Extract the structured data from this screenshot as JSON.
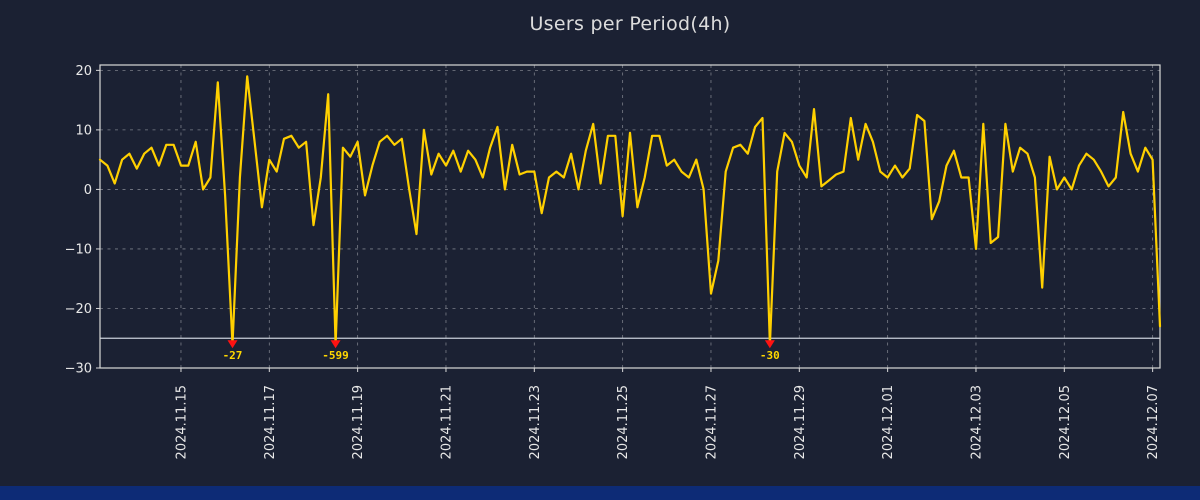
{
  "page": {
    "background": "#1b2133",
    "bottom_bar_color": "#0d2b76"
  },
  "chart_data": {
    "type": "line",
    "title": "Users per Period(4h)",
    "point_interval": "4h",
    "x_axis": {
      "ticks": [
        {
          "index": 11,
          "label": "2024.11.15"
        },
        {
          "index": 23,
          "label": "2024.11.17"
        },
        {
          "index": 35,
          "label": "2024.11.19"
        },
        {
          "index": 47,
          "label": "2024.11.21"
        },
        {
          "index": 59,
          "label": "2024.11.23"
        },
        {
          "index": 71,
          "label": "2024.11.25"
        },
        {
          "index": 83,
          "label": "2024.11.27"
        },
        {
          "index": 95,
          "label": "2024.11.29"
        },
        {
          "index": 107,
          "label": "2024.12.01"
        },
        {
          "index": 119,
          "label": "2024.12.03"
        },
        {
          "index": 131,
          "label": "2024.12.05"
        },
        {
          "index": 143,
          "label": "2024.12.07"
        }
      ]
    },
    "y_axis": {
      "range": [
        -30,
        20.9
      ],
      "ticks": [
        {
          "value": 20,
          "label": "20"
        },
        {
          "value": 10,
          "label": "10"
        },
        {
          "value": 0,
          "label": "0"
        },
        {
          "value": -10,
          "label": "−10"
        },
        {
          "value": -20,
          "label": "−20"
        },
        {
          "value": -30,
          "label": "−30"
        }
      ]
    },
    "grid": true,
    "legend": null,
    "values": [
      5,
      4,
      1,
      5,
      6,
      3.5,
      6,
      7,
      4,
      7.5,
      7.5,
      4,
      4,
      8,
      0,
      2,
      18,
      -1,
      -27,
      2,
      19,
      8,
      -3,
      5,
      3,
      8.5,
      9,
      7,
      8,
      -6,
      2,
      16,
      -599,
      7,
      5.5,
      8,
      -1,
      4,
      8,
      9,
      7.5,
      8.5,
      0,
      -7.5,
      10,
      2.5,
      6,
      4,
      6.5,
      3,
      6.5,
      5,
      2,
      7,
      10.5,
      0,
      7.5,
      2.5,
      3,
      3,
      -4,
      2,
      3,
      2,
      6,
      0,
      6.5,
      11,
      1,
      9,
      9,
      -4.5,
      9.5,
      -3,
      2,
      9,
      9,
      4,
      5,
      3,
      2,
      5,
      0,
      -17.5,
      -12,
      3,
      7,
      7.5,
      6,
      10.5,
      12,
      -30,
      3,
      9.5,
      8,
      4,
      2,
      13.5,
      0.5,
      1.5,
      2.5,
      3,
      12,
      5,
      11,
      8,
      3,
      2,
      4,
      2,
      3.5,
      12.5,
      11.5,
      -5,
      -2,
      4,
      6.5,
      2,
      2,
      -10,
      11,
      -9,
      -8,
      11,
      3,
      7,
      6,
      2,
      -16.5,
      5.5,
      0,
      2,
      0,
      4,
      6,
      5,
      3,
      0.5,
      2,
      13,
      6,
      3,
      7,
      5,
      -23
    ],
    "clip": {
      "threshold": -25,
      "display_value": -26,
      "rule_value": -25,
      "rule_color": "#c9ced9"
    },
    "annotations": [
      {
        "index": 18,
        "value": -27,
        "label": "-27"
      },
      {
        "index": 32,
        "value": -599,
        "label": "-599"
      },
      {
        "index": 91,
        "value": -30,
        "label": "-30"
      }
    ],
    "style": {
      "line_color": "#ffd000",
      "marker_color": "#ff1212",
      "annotation_color": "#ffd700",
      "grid_color": "#ffffff",
      "axis_color": "#d9d9d9",
      "text_color": "#e8e8e8",
      "title_color": "#dcdcdc"
    }
  }
}
